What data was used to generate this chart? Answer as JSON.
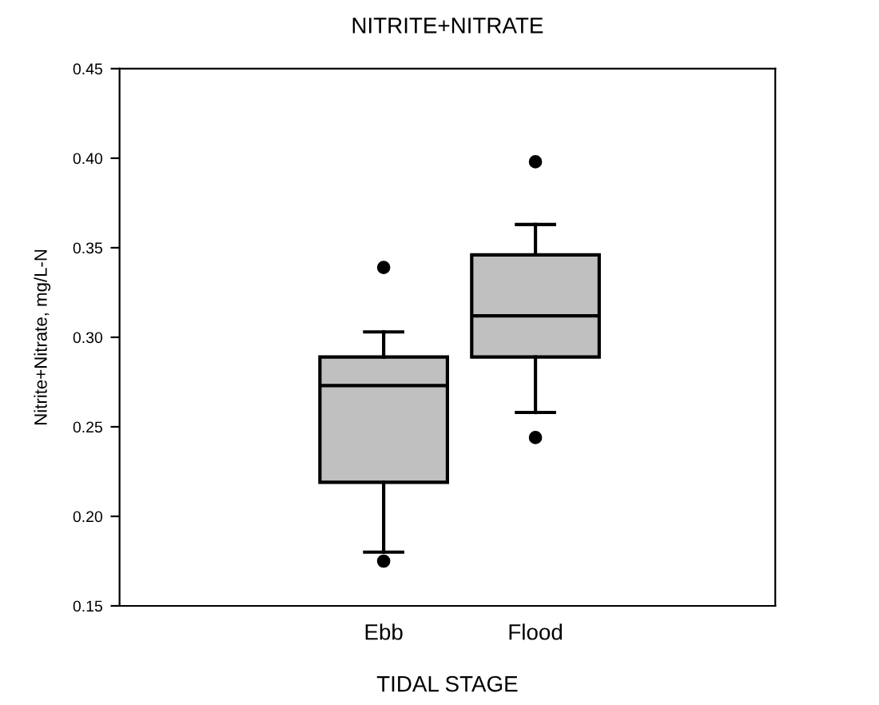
{
  "chart_data": {
    "type": "box",
    "title": "NITRITE+NITRATE",
    "xlabel": "TIDAL STAGE",
    "ylabel": "Nitrite+Nitrate, mg/L-N",
    "categories": [
      "Ebb",
      "Flood"
    ],
    "boxes": [
      {
        "low": 0.18,
        "q1": 0.219,
        "median": 0.273,
        "q3": 0.289,
        "high": 0.303,
        "outliers": [
          0.339,
          0.175
        ]
      },
      {
        "low": 0.258,
        "q1": 0.289,
        "median": 0.312,
        "q3": 0.346,
        "high": 0.363,
        "outliers": [
          0.398,
          0.244
        ]
      }
    ],
    "color": "#c0c0c0",
    "ylim": [
      0.15,
      0.45
    ],
    "yticks": [
      {
        "value": 0.15,
        "label": "0.15"
      },
      {
        "value": 0.2,
        "label": "0.20"
      },
      {
        "value": 0.25,
        "label": "0.25"
      },
      {
        "value": 0.3,
        "label": "0.30"
      },
      {
        "value": 0.35,
        "label": "0.35"
      },
      {
        "value": 0.4,
        "label": "0.40"
      },
      {
        "value": 0.45,
        "label": "0.45"
      }
    ],
    "grid": false,
    "legend": false
  }
}
